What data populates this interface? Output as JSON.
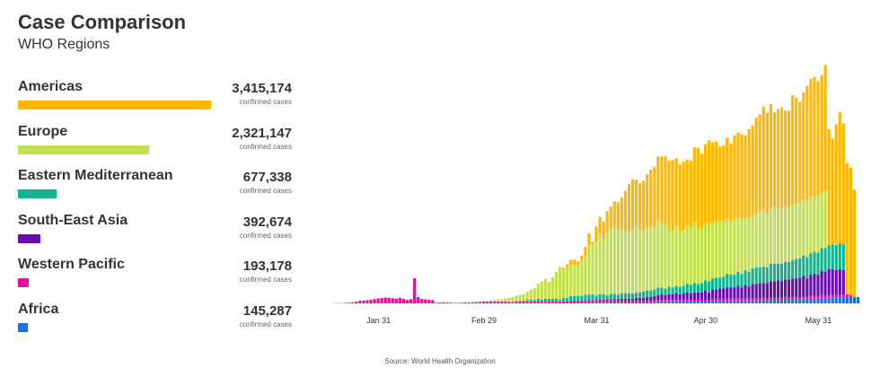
{
  "header": {
    "title": "Case Comparison",
    "subtitle": "WHO Regions"
  },
  "colors": {
    "Americas": "#ffb703",
    "Europe": "#c2df4f",
    "Eastern Mediterranean": "#14b38e",
    "South-East Asia": "#6a0dad",
    "Western Pacific": "#e0119b",
    "Africa": "#1a6fe0"
  },
  "regions": [
    {
      "name": "Americas",
      "cases": "3,415,174",
      "unit": "confirmed cases",
      "value": 3415174
    },
    {
      "name": "Europe",
      "cases": "2,321,147",
      "unit": "confirmed cases",
      "value": 2321147
    },
    {
      "name": "Eastern Mediterranean",
      "cases": "677,338",
      "unit": "confirmed cases",
      "value": 677338
    },
    {
      "name": "South-East Asia",
      "cases": "392,674",
      "unit": "confirmed cases",
      "value": 392674
    },
    {
      "name": "Western Pacific",
      "cases": "193,178",
      "unit": "confirmed cases",
      "value": 193178
    },
    {
      "name": "Africa",
      "cases": "145,287",
      "unit": "confirmed cases",
      "value": 145287
    }
  ],
  "source": "Source: World Health Organization",
  "chart_data": {
    "type": "bar",
    "stacked": true,
    "title": "",
    "xlabel": "",
    "ylabel": "",
    "grid": false,
    "ylim": [
      0,
      140000
    ],
    "x_start": "Jan 19",
    "x_end": "Jun 7",
    "tick_labels": [
      {
        "label": "Jan 31",
        "day_index": 12
      },
      {
        "label": "Feb 29",
        "day_index": 41
      },
      {
        "label": "Mar 31",
        "day_index": 72
      },
      {
        "label": "Apr 30",
        "day_index": 102
      },
      {
        "label": "May 31",
        "day_index": 133
      }
    ],
    "stack_order": [
      "Africa",
      "Western Pacific",
      "South-East Asia",
      "Eastern Mediterranean",
      "Europe",
      "Americas"
    ],
    "series": [
      {
        "name": "Africa",
        "values": [
          0,
          0,
          0,
          0,
          0,
          0,
          0,
          0,
          0,
          0,
          0,
          0,
          0,
          0,
          0,
          0,
          0,
          0,
          0,
          0,
          0,
          0,
          0,
          0,
          0,
          0,
          0,
          0,
          0,
          0,
          0,
          0,
          0,
          0,
          0,
          0,
          0,
          0,
          0,
          0,
          0,
          0,
          0,
          0,
          0,
          0,
          0,
          0,
          0,
          0,
          0,
          0,
          0,
          0,
          0,
          0,
          0,
          0,
          0,
          0,
          0,
          0,
          0,
          0,
          0,
          550,
          550,
          550,
          550,
          550,
          550,
          550,
          550,
          550,
          550,
          550,
          550,
          550,
          550,
          550,
          550,
          550,
          550,
          550,
          550,
          550,
          550,
          550,
          550,
          1100,
          1100,
          1100,
          1100,
          1100,
          1100,
          1100,
          1100,
          1100,
          1100,
          1100,
          1100,
          1100,
          1100,
          1100,
          1650,
          1650,
          1650,
          1650,
          1650,
          1650,
          1650,
          1650,
          1650,
          1650,
          1650,
          1650,
          1650,
          1650,
          2200,
          1650,
          2200,
          2200,
          2200,
          2200,
          2200,
          2200,
          2200,
          2200,
          2200,
          2750,
          2750,
          2750,
          2750,
          2750,
          3300,
          2750,
          3300,
          3300,
          3300,
          3300,
          3850,
          3850,
          3300,
          3850,
          3850
        ]
      },
      {
        "name": "Western Pacific",
        "values": [
          100,
          150,
          200,
          300,
          450,
          700,
          1100,
          1600,
          1700,
          1900,
          2100,
          2600,
          3000,
          3200,
          3500,
          3300,
          3000,
          2800,
          3300,
          2600,
          2000,
          2500,
          15000,
          3800,
          2700,
          2400,
          2200,
          2000,
          400,
          600,
          700,
          600,
          500,
          350,
          300,
          450,
          600,
          550,
          700,
          800,
          900,
          1100,
          1000,
          1100,
          1100,
          1200,
          1100,
          1100,
          1000,
          900,
          1000,
          1100,
          1100,
          900,
          1100,
          1000,
          1100,
          1000,
          1000,
          1100,
          1000,
          1100,
          1000,
          1100,
          1100,
          1000,
          1100,
          1100,
          1000,
          1100,
          1100,
          1100,
          1000,
          1100,
          1100,
          1000,
          1100,
          1100,
          1000,
          1100,
          1100,
          1100,
          1000,
          1100,
          1100,
          1100,
          1100,
          1000,
          1100,
          1100,
          1100,
          1000,
          1100,
          1100,
          1100,
          1000,
          1100,
          1100,
          1100,
          1000,
          1100,
          1100,
          1100,
          1000,
          1100,
          1100,
          1100,
          1100,
          1100,
          1100,
          1100,
          1100,
          1100,
          1100,
          1100,
          1100,
          1100,
          1100,
          1100,
          1100,
          1100,
          1100,
          1100,
          1100,
          1650,
          1100,
          1100,
          1650,
          1100,
          1100,
          1100,
          1650,
          1650,
          1100,
          1650,
          1650,
          1650,
          1650,
          1650,
          1650,
          1100,
          1650,
          1650
        ]
      },
      {
        "name": "South-East Asia",
        "values": [
          0,
          0,
          0,
          0,
          0,
          0,
          0,
          0,
          0,
          0,
          0,
          0,
          0,
          0,
          0,
          0,
          0,
          0,
          0,
          0,
          0,
          0,
          0,
          0,
          0,
          0,
          0,
          0,
          0,
          0,
          0,
          0,
          0,
          0,
          0,
          0,
          0,
          0,
          0,
          0,
          0,
          0,
          0,
          0,
          0,
          0,
          0,
          0,
          0,
          0,
          0,
          0,
          0,
          0,
          0,
          0,
          0,
          0,
          0,
          0,
          0,
          0,
          0,
          0,
          0,
          0,
          100,
          100,
          200,
          200,
          300,
          300,
          400,
          500,
          600,
          600,
          700,
          800,
          900,
          1000,
          1100,
          1100,
          1100,
          1650,
          1650,
          1650,
          2200,
          2200,
          2750,
          2750,
          3300,
          2750,
          3300,
          3300,
          3850,
          3300,
          3850,
          4400,
          3850,
          4400,
          4400,
          4400,
          5500,
          4400,
          5500,
          5500,
          6050,
          6050,
          6600,
          6600,
          6600,
          7700,
          6600,
          8250,
          7150,
          8800,
          8800,
          9350,
          8800,
          9350,
          9900,
          9900,
          10450,
          9900,
          10450,
          11000,
          11550,
          11000,
          12100,
          12650,
          11000,
          12650,
          13200,
          13200,
          14300,
          14300,
          15400,
          15400,
          14850,
          15400,
          14850
        ]
      },
      {
        "name": "Eastern Mediterranean",
        "values": [
          0,
          0,
          0,
          0,
          0,
          0,
          0,
          0,
          0,
          0,
          0,
          0,
          0,
          0,
          0,
          0,
          0,
          0,
          0,
          0,
          0,
          0,
          0,
          0,
          0,
          0,
          0,
          0,
          0,
          0,
          0,
          0,
          0,
          0,
          0,
          0,
          0,
          0,
          0,
          0,
          0,
          0,
          0,
          0,
          0,
          0,
          0,
          0,
          0,
          0,
          550,
          550,
          550,
          1100,
          1100,
          1100,
          1650,
          1100,
          1650,
          1650,
          1650,
          1650,
          1100,
          2200,
          2200,
          2750,
          2750,
          2750,
          2750,
          3300,
          3300,
          3300,
          2750,
          3300,
          3300,
          2750,
          3300,
          3300,
          2750,
          3300,
          3300,
          3300,
          3300,
          3300,
          3300,
          3850,
          3850,
          3850,
          3850,
          4400,
          3850,
          3850,
          4400,
          3850,
          4400,
          4400,
          4400,
          4950,
          4950,
          5500,
          4950,
          5500,
          6050,
          6600,
          6600,
          7150,
          6600,
          7150,
          8250,
          7700,
          7700,
          8250,
          8250,
          8800,
          8800,
          9350,
          9900,
          9350,
          9900,
          9350,
          10450,
          10450,
          9900,
          10450,
          10450,
          10450,
          11000,
          11550,
          11550,
          12100,
          12650,
          12650,
          13200,
          13200,
          13750,
          14300,
          14300,
          14850,
          14850,
          15400,
          15400
        ]
      },
      {
        "name": "Europe",
        "values": [
          0,
          0,
          0,
          0,
          0,
          0,
          0,
          0,
          0,
          0,
          0,
          0,
          0,
          0,
          0,
          0,
          0,
          0,
          0,
          0,
          0,
          0,
          0,
          0,
          0,
          0,
          0,
          0,
          0,
          0,
          0,
          0,
          0,
          0,
          0,
          0,
          0,
          0,
          0,
          0,
          200,
          300,
          500,
          800,
          900,
          1100,
          1400,
          2000,
          2200,
          2800,
          3000,
          3600,
          3800,
          5000,
          6000,
          7000,
          9000,
          11000,
          12000,
          10000,
          13000,
          16000,
          19000,
          17000,
          18000,
          18500,
          18000,
          18000,
          21000,
          23000,
          29000,
          30000,
          32000,
          36000,
          32000,
          38000,
          39000,
          41000,
          38000,
          38000,
          36000,
          37000,
          38000,
          40000,
          37000,
          36000,
          37000,
          38000,
          37000,
          40000,
          38000,
          38000,
          33000,
          34000,
          36000,
          33000,
          33000,
          35000,
          34000,
          36000,
          33000,
          33000,
          34000,
          34000,
          33000,
          33000,
          34000,
          33000,
          33000,
          32000,
          33000,
          32000,
          33000,
          31000,
          32000,
          31000,
          32000,
          33000,
          34000,
          32000,
          33000,
          34000,
          33000,
          33000,
          33000,
          32000,
          33000,
          33000,
          33000,
          33000,
          33000,
          34000,
          33000,
          34000,
          33000,
          34000
        ]
      },
      {
        "name": "Americas",
        "values": [
          0,
          0,
          0,
          0,
          0,
          0,
          0,
          0,
          0,
          0,
          0,
          0,
          0,
          0,
          0,
          0,
          0,
          0,
          0,
          0,
          0,
          0,
          0,
          0,
          0,
          0,
          0,
          0,
          0,
          0,
          0,
          0,
          0,
          0,
          0,
          0,
          0,
          0,
          0,
          0,
          0,
          0,
          0,
          0,
          0,
          0,
          0,
          0,
          0,
          0,
          0,
          0,
          0,
          0,
          0,
          0,
          0,
          0,
          0,
          0,
          0,
          0,
          500,
          1000,
          2000,
          3000,
          3500,
          2500,
          3000,
          5500,
          7500,
          1500,
          9000,
          10000,
          11000,
          12000,
          13000,
          14000,
          17000,
          19000,
          25000,
          28000,
          30000,
          27000,
          28000,
          30000,
          32000,
          34000,
          36000,
          38000,
          40000,
          41000,
          42000,
          42000,
          40000,
          40000,
          41000,
          39000,
          40000,
          45000,
          48000,
          44000,
          47000,
          50000,
          48000,
          48000,
          44000,
          45000,
          48000,
          46000,
          50000,
          51000,
          50000,
          49000,
          53000,
          54000,
          57000,
          58000,
          61000,
          60000,
          62000,
          56000,
          59000,
          60000,
          57000,
          58000,
          65000,
          63000,
          60000,
          64000,
          69000,
          70000,
          71000,
          68000,
          70000,
          75000,
          69000,
          63000,
          72000,
          78000,
          72000,
          78000,
          76000,
          64000
        ]
      }
    ]
  }
}
